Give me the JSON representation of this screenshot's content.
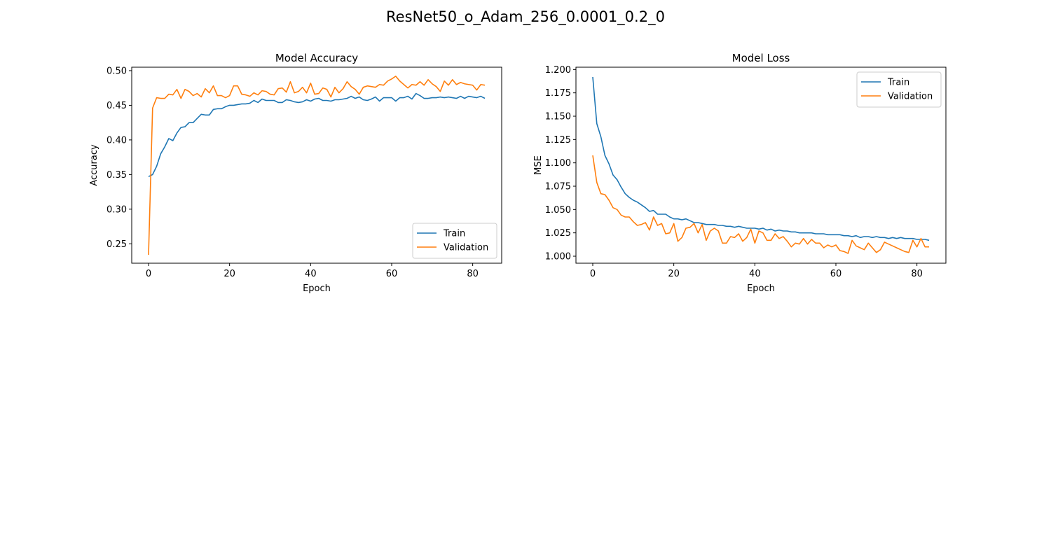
{
  "title": "ResNet50_o_Adam_256_0.0001_0.2_0",
  "chart_data": [
    {
      "type": "line",
      "title": "Model Accuracy",
      "xlabel": "Epoch",
      "ylabel": "Accuracy",
      "xlim": [
        -4.15,
        87.15
      ],
      "ylim": [
        0.222,
        0.505
      ],
      "xticks": [
        0,
        20,
        40,
        60,
        80
      ],
      "yticks": [
        0.25,
        0.3,
        0.35,
        0.4,
        0.45,
        0.5
      ],
      "ytick_labels": [
        "0.25",
        "0.30",
        "0.35",
        "0.40",
        "0.45",
        "0.50"
      ],
      "grid": false,
      "legend": "lower right",
      "series": [
        {
          "name": "Train",
          "color": "#1f77b4",
          "values": [
            0.347,
            0.35,
            0.362,
            0.38,
            0.39,
            0.402,
            0.399,
            0.41,
            0.418,
            0.419,
            0.425,
            0.425,
            0.431,
            0.437,
            0.436,
            0.436,
            0.444,
            0.445,
            0.445,
            0.448,
            0.45,
            0.45,
            0.451,
            0.452,
            0.452,
            0.453,
            0.457,
            0.454,
            0.459,
            0.457,
            0.457,
            0.457,
            0.454,
            0.454,
            0.458,
            0.457,
            0.455,
            0.454,
            0.455,
            0.458,
            0.456,
            0.459,
            0.46,
            0.457,
            0.457,
            0.456,
            0.458,
            0.458,
            0.459,
            0.46,
            0.463,
            0.46,
            0.462,
            0.458,
            0.457,
            0.459,
            0.462,
            0.456,
            0.461,
            0.461,
            0.461,
            0.456,
            0.461,
            0.461,
            0.463,
            0.459,
            0.467,
            0.464,
            0.46,
            0.46,
            0.461,
            0.461,
            0.462,
            0.461,
            0.462,
            0.461,
            0.46,
            0.463,
            0.46,
            0.463,
            0.462,
            0.461,
            0.463,
            0.46
          ]
        },
        {
          "name": "Validation",
          "color": "#ff7f0e",
          "values": [
            0.234,
            0.446,
            0.461,
            0.46,
            0.46,
            0.466,
            0.465,
            0.473,
            0.46,
            0.473,
            0.47,
            0.464,
            0.467,
            0.462,
            0.474,
            0.468,
            0.478,
            0.464,
            0.464,
            0.461,
            0.464,
            0.478,
            0.478,
            0.466,
            0.465,
            0.463,
            0.468,
            0.465,
            0.471,
            0.47,
            0.466,
            0.465,
            0.474,
            0.475,
            0.469,
            0.484,
            0.468,
            0.47,
            0.476,
            0.468,
            0.482,
            0.466,
            0.467,
            0.475,
            0.473,
            0.462,
            0.476,
            0.468,
            0.474,
            0.484,
            0.477,
            0.473,
            0.466,
            0.476,
            0.478,
            0.477,
            0.476,
            0.48,
            0.479,
            0.485,
            0.488,
            0.492,
            0.485,
            0.48,
            0.475,
            0.48,
            0.479,
            0.484,
            0.479,
            0.487,
            0.481,
            0.477,
            0.47,
            0.485,
            0.479,
            0.487,
            0.48,
            0.483,
            0.481,
            0.48,
            0.479,
            0.472,
            0.48,
            0.479
          ]
        }
      ]
    },
    {
      "type": "line",
      "title": "Model Loss",
      "xlabel": "Epoch",
      "ylabel": "MSE",
      "xlim": [
        -4.15,
        87.15
      ],
      "ylim": [
        0.9925,
        1.2025
      ],
      "xticks": [
        0,
        20,
        40,
        60,
        80
      ],
      "yticks": [
        1.0,
        1.025,
        1.05,
        1.075,
        1.1,
        1.125,
        1.15,
        1.175,
        1.2
      ],
      "ytick_labels": [
        "1.000",
        "1.025",
        "1.050",
        "1.075",
        "1.100",
        "1.125",
        "1.150",
        "1.175",
        "1.200"
      ],
      "grid": false,
      "legend": "upper right",
      "series": [
        {
          "name": "Train",
          "color": "#1f77b4",
          "values": [
            1.192,
            1.142,
            1.128,
            1.108,
            1.099,
            1.087,
            1.082,
            1.074,
            1.067,
            1.063,
            1.06,
            1.058,
            1.055,
            1.052,
            1.048,
            1.049,
            1.045,
            1.045,
            1.045,
            1.042,
            1.04,
            1.04,
            1.039,
            1.04,
            1.038,
            1.036,
            1.036,
            1.035,
            1.034,
            1.034,
            1.034,
            1.033,
            1.033,
            1.032,
            1.032,
            1.031,
            1.032,
            1.031,
            1.03,
            1.03,
            1.03,
            1.029,
            1.03,
            1.028,
            1.029,
            1.027,
            1.028,
            1.027,
            1.027,
            1.026,
            1.026,
            1.025,
            1.025,
            1.025,
            1.025,
            1.024,
            1.024,
            1.024,
            1.023,
            1.023,
            1.023,
            1.023,
            1.022,
            1.022,
            1.021,
            1.022,
            1.02,
            1.021,
            1.021,
            1.02,
            1.021,
            1.02,
            1.02,
            1.019,
            1.02,
            1.019,
            1.02,
            1.019,
            1.019,
            1.019,
            1.018,
            1.018,
            1.018,
            1.017
          ]
        },
        {
          "name": "Validation",
          "color": "#ff7f0e",
          "values": [
            1.108,
            1.079,
            1.067,
            1.066,
            1.06,
            1.052,
            1.05,
            1.044,
            1.042,
            1.042,
            1.037,
            1.033,
            1.034,
            1.036,
            1.028,
            1.042,
            1.033,
            1.035,
            1.024,
            1.025,
            1.035,
            1.016,
            1.02,
            1.03,
            1.031,
            1.035,
            1.025,
            1.034,
            1.017,
            1.027,
            1.03,
            1.027,
            1.014,
            1.014,
            1.021,
            1.02,
            1.024,
            1.016,
            1.02,
            1.029,
            1.014,
            1.027,
            1.025,
            1.017,
            1.017,
            1.024,
            1.019,
            1.021,
            1.016,
            1.01,
            1.014,
            1.013,
            1.019,
            1.013,
            1.018,
            1.014,
            1.014,
            1.009,
            1.012,
            1.01,
            1.012,
            1.006,
            1.005,
            1.003,
            1.017,
            1.011,
            1.009,
            1.007,
            1.014,
            1.009,
            1.004,
            1.007,
            1.015,
            1.013,
            1.011,
            1.009,
            1.007,
            1.005,
            1.004,
            1.017,
            1.01,
            1.019,
            1.01,
            1.01
          ]
        }
      ]
    }
  ]
}
